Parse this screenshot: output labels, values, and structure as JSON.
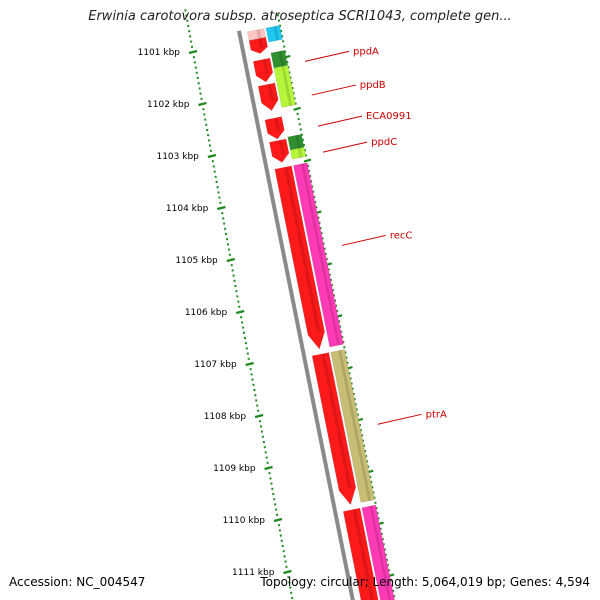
{
  "title": "Erwinia carotovora subsp. atroseptica SCRI1043, complete gen...",
  "footer": {
    "accession": "Accession: NC_004547",
    "summary": "Topology: circular; Length: 5,064,019 bp; Genes: 4,594"
  },
  "axis": {
    "unit": "kbp",
    "ticks": [
      {
        "kbp": 1101,
        "label": "1101 kbp"
      },
      {
        "kbp": 1102,
        "label": "1102 kbp"
      },
      {
        "kbp": 1103,
        "label": "1103 kbp"
      },
      {
        "kbp": 1104,
        "label": "1104 kbp"
      },
      {
        "kbp": 1105,
        "label": "1105 kbp"
      },
      {
        "kbp": 1106,
        "label": "1106 kbp"
      },
      {
        "kbp": 1107,
        "label": "1107 kbp"
      },
      {
        "kbp": 1108,
        "label": "1108 kbp"
      },
      {
        "kbp": 1109,
        "label": "1109 kbp"
      },
      {
        "kbp": 1110,
        "label": "1110 kbp"
      },
      {
        "kbp": 1111,
        "label": "1111 kbp"
      }
    ]
  },
  "colors": {
    "backbone": "#8a8a8a",
    "tick": "#1f8a1f",
    "cds": "#ff1a1a",
    "label": "#cc0000",
    "light_green": "#b5f53a",
    "dark_green": "#2f8f2f",
    "magenta": "#ff3ab5",
    "olive": "#c7bd74",
    "cyan": "#1ec8f0",
    "pink": "#ffc4c4"
  },
  "features": [
    {
      "name": "pink-block",
      "start_kbp": 1100.45,
      "end_kbp": 1100.62,
      "track": "inner",
      "color": "pink"
    },
    {
      "name": "cyan-block",
      "start_kbp": 1100.45,
      "end_kbp": 1100.72,
      "track": "outer",
      "color": "cyan"
    },
    {
      "name": "ppdA-cds",
      "start_kbp": 1100.62,
      "end_kbp": 1100.9,
      "track": "inner",
      "color": "cds",
      "arrow": true
    },
    {
      "name": "ppdA-green",
      "start_kbp": 1100.93,
      "end_kbp": 1101.22,
      "track": "outer",
      "color": "dark_green"
    },
    {
      "name": "ppdB-cds",
      "start_kbp": 1101.02,
      "end_kbp": 1101.45,
      "track": "inner",
      "color": "cds",
      "arrow": true
    },
    {
      "name": "ppdB-green",
      "start_kbp": 1101.22,
      "end_kbp": 1101.98,
      "track": "outer",
      "color": "light_green"
    },
    {
      "name": "ppdB-cds-2",
      "start_kbp": 1101.5,
      "end_kbp": 1102.0,
      "track": "inner",
      "color": "cds",
      "arrow": true
    },
    {
      "name": "ppdC-cds",
      "start_kbp": 1102.15,
      "end_kbp": 1102.55,
      "track": "inner",
      "color": "cds",
      "arrow": true
    },
    {
      "name": "ppdC-cds-2",
      "start_kbp": 1102.58,
      "end_kbp": 1103.0,
      "track": "inner",
      "color": "cds",
      "arrow": true
    },
    {
      "name": "ppdC-green",
      "start_kbp": 1102.55,
      "end_kbp": 1102.8,
      "track": "outer",
      "color": "dark_green"
    },
    {
      "name": "ppdC-lightgreen",
      "start_kbp": 1102.8,
      "end_kbp": 1102.98,
      "track": "outer",
      "color": "light_green"
    },
    {
      "name": "recC-cds",
      "start_kbp": 1103.1,
      "end_kbp": 1106.6,
      "track": "inner",
      "color": "cds",
      "arrow": true
    },
    {
      "name": "recC-magenta",
      "start_kbp": 1103.1,
      "end_kbp": 1106.6,
      "track": "outer",
      "color": "magenta"
    },
    {
      "name": "ptrA-cds",
      "start_kbp": 1106.7,
      "end_kbp": 1109.6,
      "track": "inner",
      "color": "cds",
      "arrow": true
    },
    {
      "name": "ptrA-olive",
      "start_kbp": 1106.7,
      "end_kbp": 1109.6,
      "track": "outer",
      "color": "olive"
    },
    {
      "name": "next-cds",
      "start_kbp": 1109.7,
      "end_kbp": 1111.6,
      "track": "inner",
      "color": "cds",
      "arrow": false
    },
    {
      "name": "next-magenta",
      "start_kbp": 1109.7,
      "end_kbp": 1111.6,
      "track": "outer",
      "color": "magenta"
    }
  ],
  "gene_labels": [
    {
      "text": "ppdA",
      "kbp": 1101.1
    },
    {
      "text": "ppdB",
      "kbp": 1101.75
    },
    {
      "text": "ECA0991",
      "kbp": 1102.35
    },
    {
      "text": "ppdC",
      "kbp": 1102.85
    },
    {
      "text": "recC",
      "kbp": 1104.65
    },
    {
      "text": "ptrA",
      "kbp": 1108.1
    }
  ]
}
